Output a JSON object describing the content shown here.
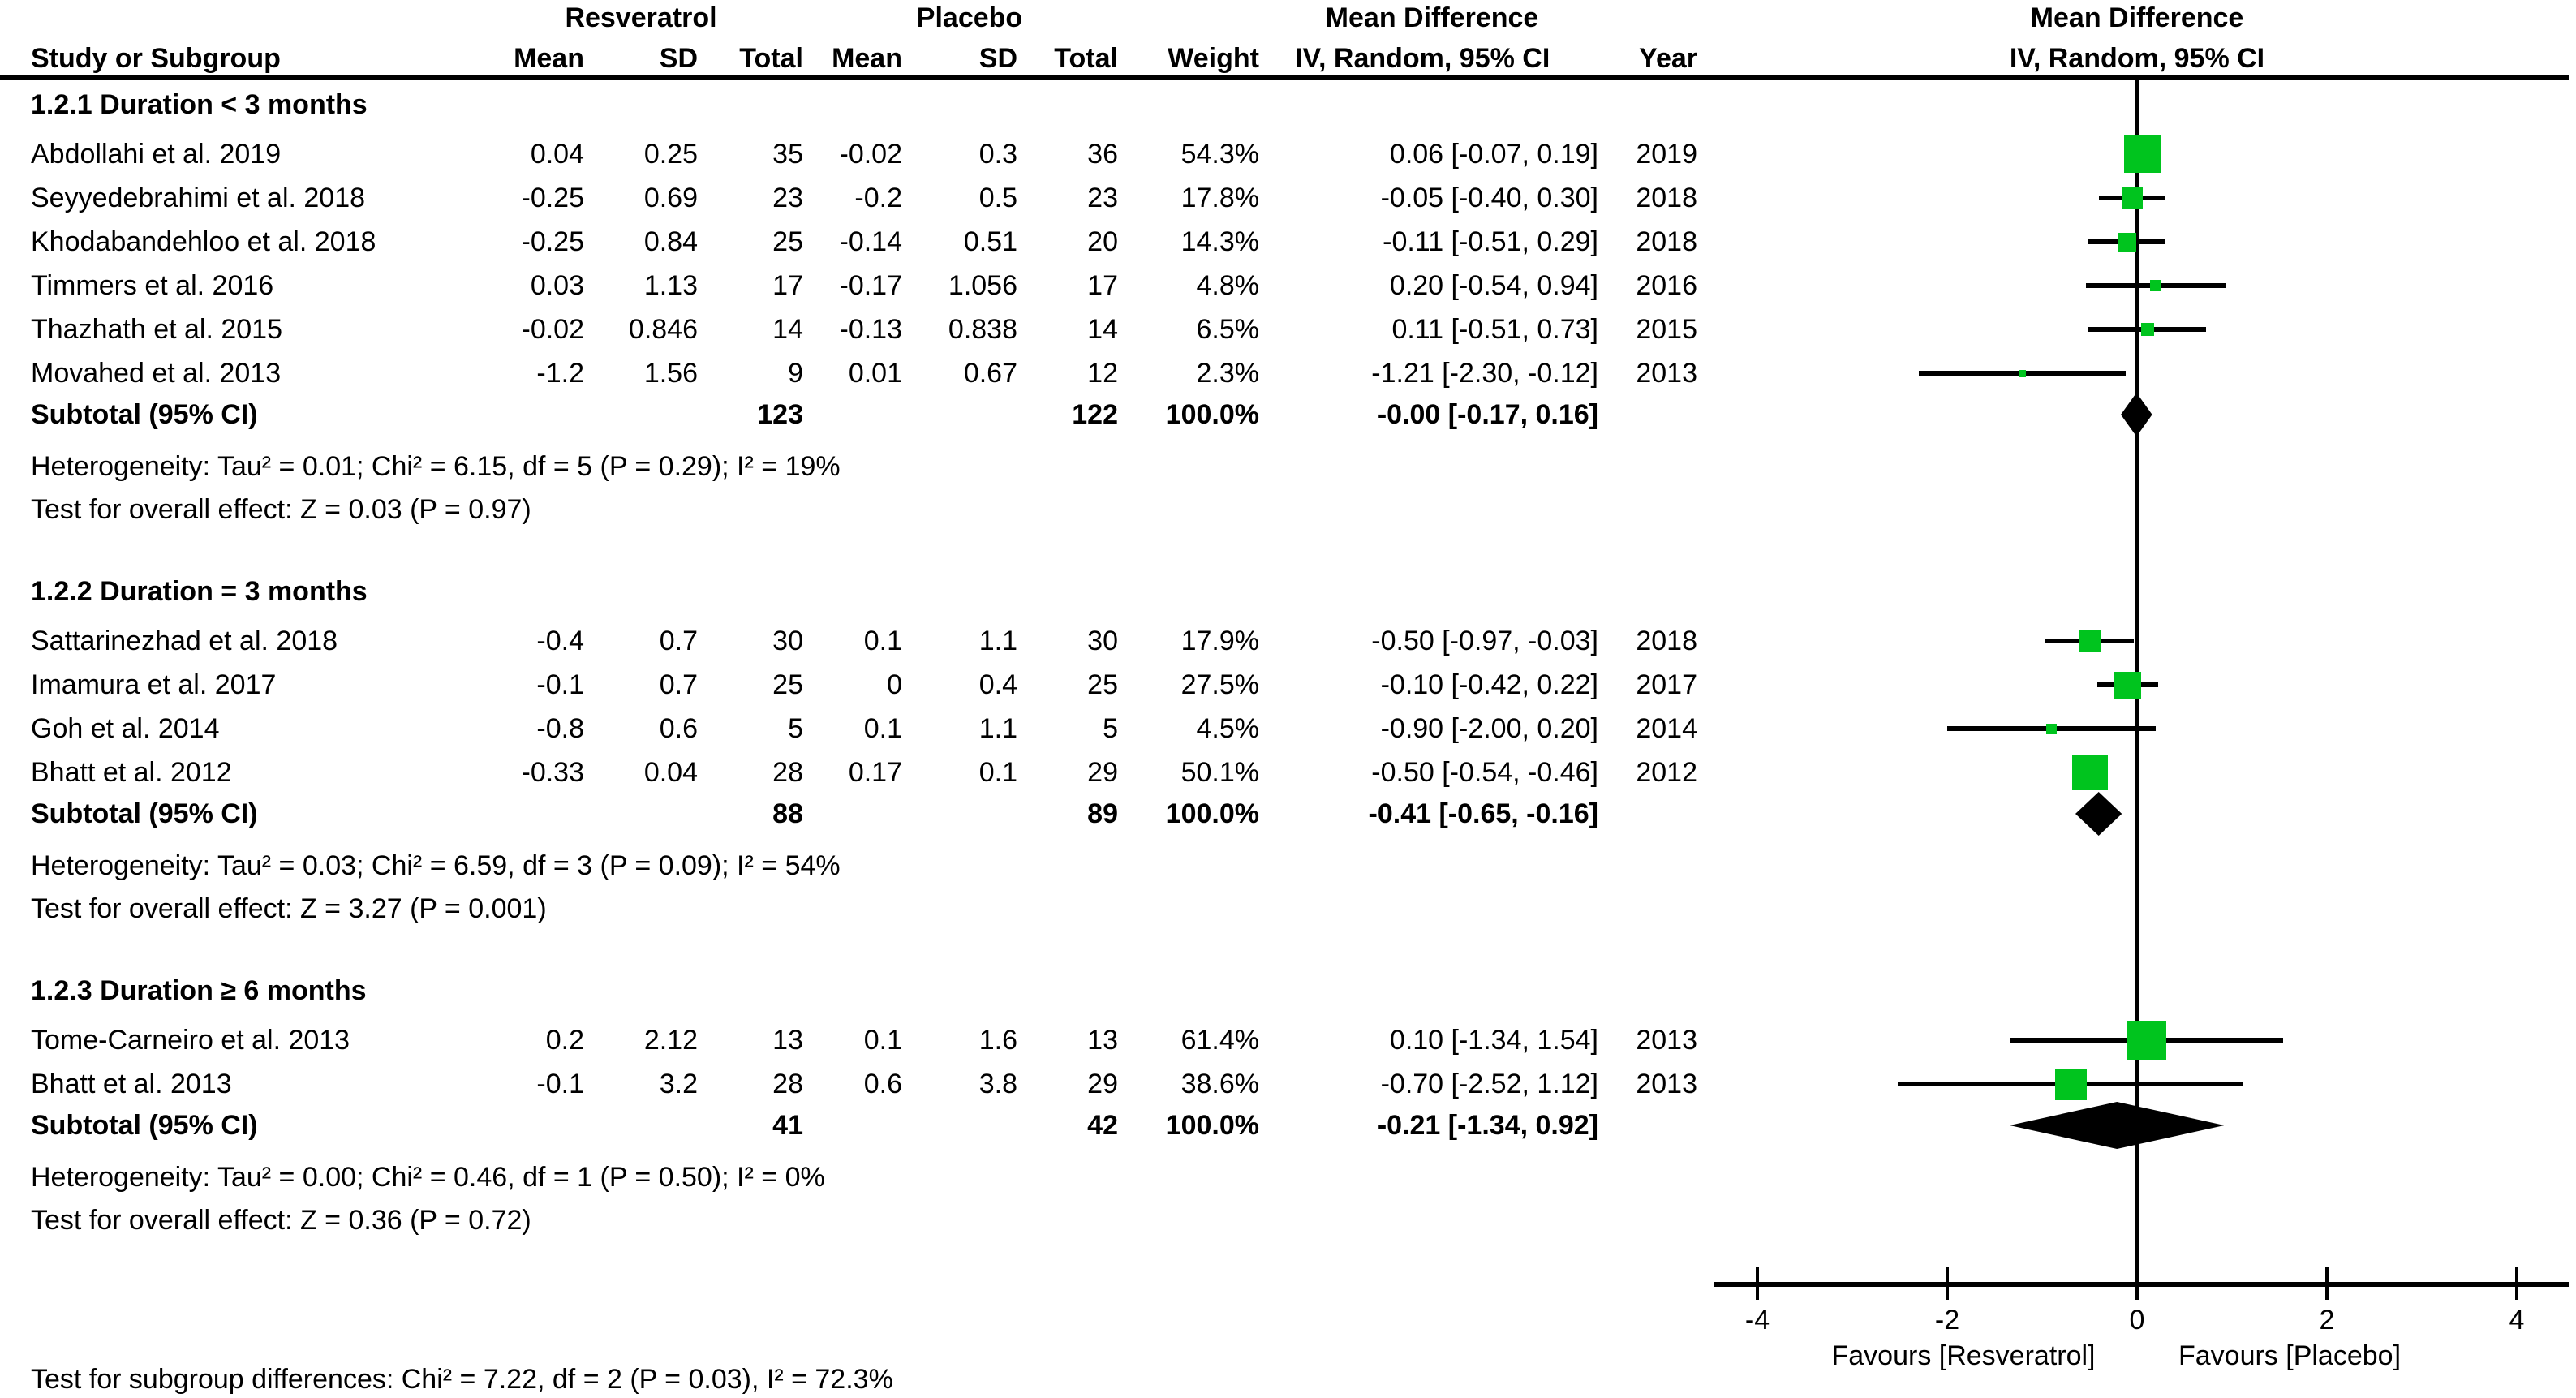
{
  "header": {
    "group_treatment": "Resveratrol",
    "group_control": "Placebo",
    "md_left_line1": "Mean Difference",
    "md_left_line2": "IV, Random, 95% CI",
    "md_right_line1": "Mean Difference",
    "md_right_line2": "IV, Random, 95% CI",
    "study": "Study or Subgroup",
    "mean": "Mean",
    "sd": "SD",
    "total": "Total",
    "mean2": "Mean",
    "sd2": "SD",
    "total2": "Total",
    "weight": "Weight",
    "ivci": "IV, Random, 95% CI",
    "year": "Year"
  },
  "axis": {
    "ticks": [
      "-4",
      "-2",
      "0",
      "2",
      "4"
    ],
    "tick_values": [
      -4,
      -2,
      0,
      2,
      4
    ],
    "favours_left": "Favours [Resveratrol]",
    "favours_right": "Favours [Placebo]"
  },
  "footer": {
    "subgroup_differences": "Test for subgroup differences: Chi² = 7.22, df = 2 (P = 0.03), I² = 72.3%"
  },
  "colors": {
    "square": "#00C41E",
    "line": "#000000",
    "diamond": "#000000",
    "text": "#000000"
  },
  "chart_data": {
    "type": "scatter",
    "subtype": "forest-plot",
    "title": "Mean Difference  IV, Random, 95% CI",
    "xlabel": "Mean Difference",
    "x_ticks": [
      -4,
      -2,
      0,
      2,
      4
    ],
    "xlim": [
      -4.5,
      4.55
    ],
    "zero_line": 0,
    "legend_position": "none",
    "grid": false,
    "groups": [
      {
        "title": "1.2.1 Duration < 3 months",
        "studies": [
          {
            "name": "Abdollahi et al. 2019",
            "mean_t": "0.04",
            "sd_t": "0.25",
            "n_t": "35",
            "mean_c": "-0.02",
            "sd_c": "0.3",
            "n_c": "36",
            "weight": "54.3%",
            "w": 54.3,
            "ci": "0.06 [-0.07, 0.19]",
            "md": 0.06,
            "lo": -0.07,
            "hi": 0.19,
            "year": "2019"
          },
          {
            "name": "Seyyedebrahimi et al. 2018",
            "mean_t": "-0.25",
            "sd_t": "0.69",
            "n_t": "23",
            "mean_c": "-0.2",
            "sd_c": "0.5",
            "n_c": "23",
            "weight": "17.8%",
            "w": 17.8,
            "ci": "-0.05 [-0.40, 0.30]",
            "md": -0.05,
            "lo": -0.4,
            "hi": 0.3,
            "year": "2018"
          },
          {
            "name": "Khodabandehloo et al. 2018",
            "mean_t": "-0.25",
            "sd_t": "0.84",
            "n_t": "25",
            "mean_c": "-0.14",
            "sd_c": "0.51",
            "n_c": "20",
            "weight": "14.3%",
            "w": 14.3,
            "ci": "-0.11 [-0.51, 0.29]",
            "md": -0.11,
            "lo": -0.51,
            "hi": 0.29,
            "year": "2018"
          },
          {
            "name": "Timmers et al. 2016",
            "mean_t": "0.03",
            "sd_t": "1.13",
            "n_t": "17",
            "mean_c": "-0.17",
            "sd_c": "1.056",
            "n_c": "17",
            "weight": "4.8%",
            "w": 4.8,
            "ci": "0.20 [-0.54, 0.94]",
            "md": 0.2,
            "lo": -0.54,
            "hi": 0.94,
            "year": "2016"
          },
          {
            "name": "Thazhath et al. 2015",
            "mean_t": "-0.02",
            "sd_t": "0.846",
            "n_t": "14",
            "mean_c": "-0.13",
            "sd_c": "0.838",
            "n_c": "14",
            "weight": "6.5%",
            "w": 6.5,
            "ci": "0.11 [-0.51, 0.73]",
            "md": 0.11,
            "lo": -0.51,
            "hi": 0.73,
            "year": "2015"
          },
          {
            "name": "Movahed et al. 2013",
            "mean_t": "-1.2",
            "sd_t": "1.56",
            "n_t": "9",
            "mean_c": "0.01",
            "sd_c": "0.67",
            "n_c": "12",
            "weight": "2.3%",
            "w": 2.3,
            "ci": "-1.21 [-2.30, -0.12]",
            "md": -1.21,
            "lo": -2.3,
            "hi": -0.12,
            "year": "2013"
          }
        ],
        "subtotal": {
          "label": "Subtotal (95% CI)",
          "n_t": "123",
          "n_c": "122",
          "weight": "100.0%",
          "ci": "-0.00 [-0.17, 0.16]",
          "lo": -0.17,
          "hi": 0.16,
          "dh": 54
        },
        "heterogeneity": "Heterogeneity: Tau² = 0.01; Chi² = 6.15, df = 5 (P = 0.29); I² = 19%",
        "overall_effect": "Test for overall effect: Z = 0.03 (P = 0.97)"
      },
      {
        "title": "1.2.2 Duration = 3 months",
        "studies": [
          {
            "name": "Sattarinezhad et al. 2018",
            "mean_t": "-0.4",
            "sd_t": "0.7",
            "n_t": "30",
            "mean_c": "0.1",
            "sd_c": "1.1",
            "n_c": "30",
            "weight": "17.9%",
            "w": 17.9,
            "ci": "-0.50 [-0.97, -0.03]",
            "md": -0.5,
            "lo": -0.97,
            "hi": -0.03,
            "year": "2018"
          },
          {
            "name": "Imamura et al. 2017",
            "mean_t": "-0.1",
            "sd_t": "0.7",
            "n_t": "25",
            "mean_c": "0",
            "sd_c": "0.4",
            "n_c": "25",
            "weight": "27.5%",
            "w": 27.5,
            "ci": "-0.10 [-0.42, 0.22]",
            "md": -0.1,
            "lo": -0.42,
            "hi": 0.22,
            "year": "2017"
          },
          {
            "name": "Goh et al. 2014",
            "mean_t": "-0.8",
            "sd_t": "0.6",
            "n_t": "5",
            "mean_c": "0.1",
            "sd_c": "1.1",
            "n_c": "5",
            "weight": "4.5%",
            "w": 4.5,
            "ci": "-0.90 [-2.00, 0.20]",
            "md": -0.9,
            "lo": -2.0,
            "hi": 0.2,
            "year": "2014"
          },
          {
            "name": "Bhatt et al. 2012",
            "mean_t": "-0.33",
            "sd_t": "0.04",
            "n_t": "28",
            "mean_c": "0.17",
            "sd_c": "0.1",
            "n_c": "29",
            "weight": "50.1%",
            "w": 50.1,
            "ci": "-0.50 [-0.54, -0.46]",
            "md": -0.5,
            "lo": -0.54,
            "hi": -0.46,
            "year": "2012"
          }
        ],
        "subtotal": {
          "label": "Subtotal (95% CI)",
          "n_t": "88",
          "n_c": "89",
          "weight": "100.0%",
          "ci": "-0.41 [-0.65, -0.16]",
          "lo": -0.65,
          "hi": -0.16,
          "dh": 54
        },
        "heterogeneity": "Heterogeneity: Tau² = 0.03; Chi² = 6.59, df = 3 (P = 0.09); I² = 54%",
        "overall_effect": "Test for overall effect: Z = 3.27 (P = 0.001)"
      },
      {
        "title": "1.2.3 Duration ≥ 6 months",
        "studies": [
          {
            "name": "Tome-Carneiro et al. 2013",
            "mean_t": "0.2",
            "sd_t": "2.12",
            "n_t": "13",
            "mean_c": "0.1",
            "sd_c": "1.6",
            "n_c": "13",
            "weight": "61.4%",
            "w": 61.4,
            "ci": "0.10 [-1.34, 1.54]",
            "md": 0.1,
            "lo": -1.34,
            "hi": 1.54,
            "year": "2013"
          },
          {
            "name": "Bhatt et al. 2013",
            "mean_t": "-0.1",
            "sd_t": "3.2",
            "n_t": "28",
            "mean_c": "0.6",
            "sd_c": "3.8",
            "n_c": "29",
            "weight": "38.6%",
            "w": 38.6,
            "ci": "-0.70 [-2.52, 1.12]",
            "md": -0.7,
            "lo": -2.52,
            "hi": 1.12,
            "year": "2013"
          }
        ],
        "subtotal": {
          "label": "Subtotal (95% CI)",
          "n_t": "41",
          "n_c": "42",
          "weight": "100.0%",
          "ci": "-0.21 [-1.34, 0.92]",
          "lo": -1.34,
          "hi": 0.92,
          "dh": 58
        },
        "heterogeneity": "Heterogeneity: Tau² = 0.00; Chi² = 0.46, df = 1 (P = 0.50); I² = 0%",
        "overall_effect": "Test for overall effect: Z = 0.36 (P = 0.72)"
      }
    ]
  }
}
